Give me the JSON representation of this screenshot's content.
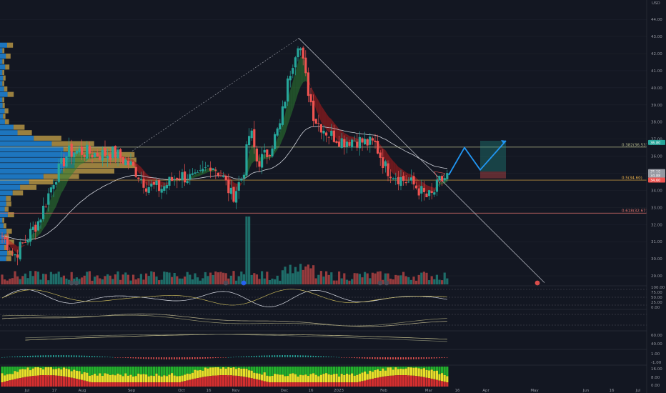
{
  "chart_data": {
    "type": "candlestick",
    "currency": "USD",
    "price_axis": {
      "ticks": [
        "44.00",
        "43.00",
        "42.00",
        "41.00",
        "40.00",
        "39.00",
        "38.00",
        "37.00",
        "36.00",
        "35.00",
        "34.00",
        "33.00",
        "32.00",
        "31.00",
        "30.00",
        "29.00"
      ],
      "range": [
        28.5,
        44.8
      ]
    },
    "time_axis": {
      "labels": [
        "Jul",
        "17",
        "Aug",
        "Sep",
        "Oct",
        "16",
        "Nov",
        "Dec",
        "16",
        "2023",
        "Feb",
        "Mar",
        "16",
        "Apr",
        "May",
        "Jun",
        "16",
        "Jul"
      ]
    },
    "fib_levels": [
      {
        "label": "0.382(36.53)",
        "price": 36.53,
        "color": "#b5b98c"
      },
      {
        "label": "0.5(34.60)",
        "price": 34.6,
        "color": "#f0b44a"
      },
      {
        "label": "0.618(32.67)",
        "price": 32.67,
        "color": "#e0736d"
      }
    ],
    "price_labels": [
      {
        "text": "36.80",
        "price": 36.8,
        "color": "#26a69a"
      },
      {
        "text": "35.10",
        "price": 35.1,
        "color": "#9598a1"
      },
      {
        "text": "34.95",
        "price": 34.95,
        "color": "#9598a1"
      },
      {
        "text": "34.88",
        "price": 34.88,
        "color": "#9598a1"
      },
      {
        "text": "34.60",
        "price": 34.6,
        "color": "#ef5350"
      }
    ],
    "peak_price": 42.9,
    "last_price": 34.9,
    "projection": {
      "path_prices": [
        34.9,
        36.5,
        35.2,
        36.9
      ],
      "target_zone": [
        35.1,
        36.9
      ],
      "stop_zone": [
        34.7,
        35.1
      ]
    },
    "oscillator_ticks": [
      "100.00",
      "75.00",
      "50.00",
      "25.00",
      "0.00"
    ],
    "oscillator2_ticks": [
      "60.00",
      "40.00"
    ],
    "histogram_ticks": [
      "1.00",
      "-1.00"
    ],
    "heat_ticks": [
      "16.00",
      "8.00",
      "0.00"
    ],
    "colors": {
      "up": "#26a69a",
      "down": "#ef5350",
      "ribbon_up": "#2e7d32",
      "ribbon_down": "#b71c1c",
      "volume_profile_blue": "#2196f3",
      "volume_profile_gold": "#c8a44a",
      "projection": "#2196f3"
    }
  }
}
